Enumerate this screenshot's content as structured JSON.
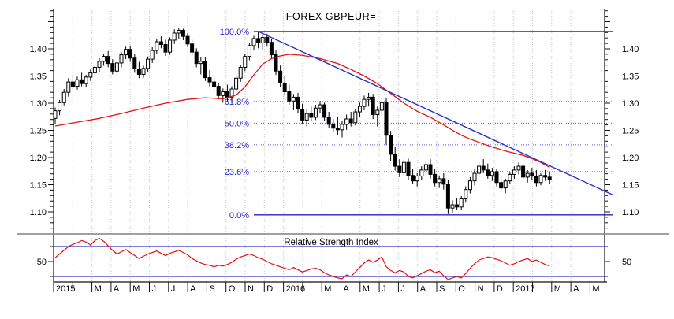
{
  "title": "FOREX GBPEUR=",
  "panels": {
    "main": {
      "name": "price-panel"
    },
    "rsi": {
      "label": "Relative Strength Index",
      "y_tick_label": "50",
      "overbought": 70,
      "oversold": 30
    }
  },
  "y_axis": {
    "tick_labels": [
      "1.40",
      "1.35",
      "1.30",
      "1.25",
      "1.20",
      "1.15",
      "1.10"
    ],
    "minor_step": 0.01,
    "major_step": 0.05,
    "minor_range": [
      1.07,
      1.47
    ]
  },
  "x_axis": {
    "month_labels": [
      "2015",
      "",
      "M",
      "A",
      "M",
      "J",
      "J",
      "A",
      "S",
      "O",
      "N",
      "D",
      "2016",
      "",
      "M",
      "A",
      "M",
      "J",
      "J",
      "A",
      "S",
      "O",
      "N",
      "D",
      "2017",
      "",
      "M",
      "A",
      "M"
    ]
  },
  "fibonacci": {
    "high": 1.432,
    "low": 1.0945,
    "levels": [
      {
        "label": "100.0%",
        "pct": 100.0,
        "price": 1.432,
        "solid": true
      },
      {
        "label": "61.8%",
        "pct": 61.8,
        "price": 1.3031,
        "solid": false
      },
      {
        "label": "50.0%",
        "pct": 50.0,
        "price": 1.2633,
        "solid": false
      },
      {
        "label": "38.2%",
        "pct": 38.2,
        "price": 1.2234,
        "solid": false
      },
      {
        "label": "23.6%",
        "pct": 23.6,
        "price": 1.1741,
        "solid": false
      },
      {
        "label": "0.0%",
        "pct": 0.0,
        "price": 1.0945,
        "solid": true
      }
    ]
  },
  "trendline": {
    "from": {
      "week": 46,
      "price": 1.432
    },
    "to": {
      "week": 126.4,
      "price": 1.131
    }
  },
  "colors": {
    "background": "#ffffff",
    "candle_up": "#ffffff",
    "candle_down": "#000000",
    "candle_stroke": "#000000",
    "ma": "#e41212",
    "rsi_line": "#e41212",
    "rsi_threshold": "#3333cc",
    "fib_solid": "#2222cc",
    "fib_dotted": "#5555dd",
    "trend": "#2233cc",
    "grid": "#c5c5c5",
    "axis": "#111111",
    "separator": "#808080",
    "label_blue": "#2222dd",
    "text": "#000000"
  },
  "chart_data": [
    {
      "type": "candlestick",
      "name": "GBPEUR= weekly OHLC",
      "x_unit": "week-index (Jan 2015 - Mar 2017)",
      "candles": [
        [
          1.272,
          1.292,
          1.262,
          1.286
        ],
        [
          1.286,
          1.306,
          1.278,
          1.301
        ],
        [
          1.301,
          1.326,
          1.296,
          1.32
        ],
        [
          1.32,
          1.346,
          1.312,
          1.339
        ],
        [
          1.339,
          1.352,
          1.326,
          1.331
        ],
        [
          1.331,
          1.349,
          1.325,
          1.343
        ],
        [
          1.343,
          1.356,
          1.331,
          1.336
        ],
        [
          1.336,
          1.352,
          1.329,
          1.348
        ],
        [
          1.348,
          1.362,
          1.341,
          1.356
        ],
        [
          1.356,
          1.371,
          1.348,
          1.366
        ],
        [
          1.366,
          1.383,
          1.358,
          1.377
        ],
        [
          1.377,
          1.391,
          1.369,
          1.386
        ],
        [
          1.386,
          1.396,
          1.366,
          1.373
        ],
        [
          1.373,
          1.381,
          1.353,
          1.359
        ],
        [
          1.359,
          1.379,
          1.351,
          1.374
        ],
        [
          1.374,
          1.394,
          1.366,
          1.389
        ],
        [
          1.389,
          1.404,
          1.381,
          1.399
        ],
        [
          1.399,
          1.406,
          1.376,
          1.383
        ],
        [
          1.383,
          1.391,
          1.356,
          1.363
        ],
        [
          1.363,
          1.376,
          1.346,
          1.353
        ],
        [
          1.353,
          1.369,
          1.347,
          1.364
        ],
        [
          1.364,
          1.386,
          1.358,
          1.381
        ],
        [
          1.381,
          1.403,
          1.374,
          1.397
        ],
        [
          1.397,
          1.419,
          1.391,
          1.413
        ],
        [
          1.413,
          1.423,
          1.401,
          1.408
        ],
        [
          1.408,
          1.417,
          1.387,
          1.394
        ],
        [
          1.394,
          1.421,
          1.389,
          1.416
        ],
        [
          1.416,
          1.436,
          1.409,
          1.429
        ],
        [
          1.429,
          1.439,
          1.418,
          1.434
        ],
        [
          1.434,
          1.437,
          1.416,
          1.423
        ],
        [
          1.423,
          1.429,
          1.403,
          1.409
        ],
        [
          1.409,
          1.417,
          1.387,
          1.394
        ],
        [
          1.394,
          1.401,
          1.366,
          1.373
        ],
        [
          1.373,
          1.384,
          1.353,
          1.377
        ],
        [
          1.377,
          1.384,
          1.341,
          1.347
        ],
        [
          1.347,
          1.361,
          1.331,
          1.339
        ],
        [
          1.339,
          1.351,
          1.324,
          1.331
        ],
        [
          1.331,
          1.337,
          1.307,
          1.314
        ],
        [
          1.314,
          1.327,
          1.301,
          1.321
        ],
        [
          1.321,
          1.334,
          1.304,
          1.311
        ],
        [
          1.311,
          1.331,
          1.301,
          1.326
        ],
        [
          1.326,
          1.351,
          1.319,
          1.346
        ],
        [
          1.346,
          1.371,
          1.339,
          1.366
        ],
        [
          1.366,
          1.391,
          1.359,
          1.386
        ],
        [
          1.386,
          1.411,
          1.379,
          1.406
        ],
        [
          1.406,
          1.424,
          1.397,
          1.419
        ],
        [
          1.419,
          1.432,
          1.401,
          1.411
        ],
        [
          1.411,
          1.427,
          1.399,
          1.421
        ],
        [
          1.421,
          1.428,
          1.404,
          1.412
        ],
        [
          1.412,
          1.419,
          1.381,
          1.389
        ],
        [
          1.389,
          1.397,
          1.352,
          1.359
        ],
        [
          1.359,
          1.369,
          1.329,
          1.337
        ],
        [
          1.337,
          1.349,
          1.314,
          1.321
        ],
        [
          1.321,
          1.334,
          1.297,
          1.304
        ],
        [
          1.304,
          1.317,
          1.287,
          1.311
        ],
        [
          1.311,
          1.319,
          1.281,
          1.289
        ],
        [
          1.289,
          1.299,
          1.261,
          1.269
        ],
        [
          1.269,
          1.289,
          1.257,
          1.281
        ],
        [
          1.281,
          1.294,
          1.267,
          1.274
        ],
        [
          1.274,
          1.297,
          1.269,
          1.291
        ],
        [
          1.291,
          1.304,
          1.281,
          1.297
        ],
        [
          1.297,
          1.301,
          1.267,
          1.274
        ],
        [
          1.274,
          1.284,
          1.254,
          1.261
        ],
        [
          1.261,
          1.271,
          1.247,
          1.254
        ],
        [
          1.254,
          1.274,
          1.241,
          1.251
        ],
        [
          1.251,
          1.267,
          1.237,
          1.261
        ],
        [
          1.261,
          1.279,
          1.251,
          1.271
        ],
        [
          1.271,
          1.284,
          1.257,
          1.264
        ],
        [
          1.264,
          1.289,
          1.259,
          1.284
        ],
        [
          1.284,
          1.301,
          1.274,
          1.294
        ],
        [
          1.294,
          1.314,
          1.287,
          1.307
        ],
        [
          1.307,
          1.319,
          1.294,
          1.311
        ],
        [
          1.311,
          1.317,
          1.271,
          1.279
        ],
        [
          1.279,
          1.294,
          1.257,
          1.287
        ],
        [
          1.287,
          1.309,
          1.277,
          1.301
        ],
        [
          1.301,
          1.309,
          1.224,
          1.241
        ],
        [
          1.241,
          1.249,
          1.194,
          1.206
        ],
        [
          1.206,
          1.219,
          1.176,
          1.184
        ],
        [
          1.184,
          1.197,
          1.164,
          1.172
        ],
        [
          1.172,
          1.197,
          1.166,
          1.191
        ],
        [
          1.191,
          1.198,
          1.159,
          1.167
        ],
        [
          1.167,
          1.179,
          1.151,
          1.157
        ],
        [
          1.157,
          1.171,
          1.147,
          1.166
        ],
        [
          1.166,
          1.184,
          1.159,
          1.177
        ],
        [
          1.177,
          1.194,
          1.169,
          1.187
        ],
        [
          1.187,
          1.197,
          1.161,
          1.169
        ],
        [
          1.169,
          1.179,
          1.147,
          1.154
        ],
        [
          1.154,
          1.167,
          1.144,
          1.161
        ],
        [
          1.161,
          1.171,
          1.141,
          1.151
        ],
        [
          1.151,
          1.159,
          1.096,
          1.107
        ],
        [
          1.107,
          1.121,
          1.099,
          1.113
        ],
        [
          1.113,
          1.126,
          1.103,
          1.109
        ],
        [
          1.109,
          1.129,
          1.104,
          1.124
        ],
        [
          1.124,
          1.147,
          1.117,
          1.141
        ],
        [
          1.141,
          1.164,
          1.134,
          1.157
        ],
        [
          1.157,
          1.179,
          1.149,
          1.171
        ],
        [
          1.171,
          1.191,
          1.164,
          1.184
        ],
        [
          1.184,
          1.197,
          1.171,
          1.177
        ],
        [
          1.177,
          1.189,
          1.161,
          1.167
        ],
        [
          1.167,
          1.181,
          1.157,
          1.174
        ],
        [
          1.174,
          1.179,
          1.147,
          1.154
        ],
        [
          1.154,
          1.167,
          1.137,
          1.144
        ],
        [
          1.144,
          1.161,
          1.134,
          1.157
        ],
        [
          1.157,
          1.174,
          1.151,
          1.169
        ],
        [
          1.169,
          1.184,
          1.161,
          1.177
        ],
        [
          1.177,
          1.191,
          1.169,
          1.184
        ],
        [
          1.184,
          1.189,
          1.157,
          1.164
        ],
        [
          1.164,
          1.177,
          1.154,
          1.171
        ],
        [
          1.171,
          1.181,
          1.159,
          1.166
        ],
        [
          1.166,
          1.177,
          1.147,
          1.154
        ],
        [
          1.154,
          1.171,
          1.149,
          1.167
        ],
        [
          1.167,
          1.177,
          1.157,
          1.164
        ],
        [
          1.164,
          1.173,
          1.152,
          1.159
        ]
      ]
    },
    {
      "type": "line",
      "name": "moving-average",
      "points": [
        [
          0,
          1.258
        ],
        [
          5,
          1.265
        ],
        [
          10,
          1.272
        ],
        [
          15,
          1.281
        ],
        [
          20,
          1.291
        ],
        [
          25,
          1.3
        ],
        [
          30,
          1.307
        ],
        [
          34,
          1.31
        ],
        [
          38,
          1.308
        ],
        [
          41,
          1.315
        ],
        [
          43,
          1.33
        ],
        [
          45,
          1.352
        ],
        [
          47,
          1.372
        ],
        [
          49,
          1.382
        ],
        [
          51,
          1.387
        ],
        [
          53,
          1.39
        ],
        [
          56,
          1.388
        ],
        [
          60,
          1.382
        ],
        [
          64,
          1.373
        ],
        [
          67,
          1.362
        ],
        [
          70,
          1.35
        ],
        [
          73,
          1.336
        ],
        [
          76,
          1.318
        ],
        [
          79,
          1.3
        ],
        [
          82,
          1.285
        ],
        [
          85,
          1.274
        ],
        [
          88,
          1.26
        ],
        [
          90,
          1.25
        ],
        [
          92,
          1.241
        ],
        [
          94,
          1.234
        ],
        [
          96,
          1.228
        ],
        [
          98,
          1.222
        ],
        [
          100,
          1.217
        ],
        [
          102,
          1.212
        ],
        [
          104,
          1.208
        ],
        [
          106,
          1.204
        ],
        [
          108,
          1.198
        ],
        [
          110,
          1.191
        ],
        [
          112,
          1.182
        ]
      ]
    },
    {
      "type": "line",
      "name": "relative-strength-index",
      "y_range": [
        0,
        100
      ],
      "values": [
        55,
        60,
        65,
        70,
        73,
        75,
        78,
        76,
        72,
        78,
        81,
        77,
        71,
        65,
        60,
        63,
        66,
        62,
        58,
        54,
        57,
        60,
        62,
        64,
        61,
        58,
        61,
        63,
        65,
        62,
        59,
        54,
        51,
        48,
        46,
        45,
        43,
        45,
        44,
        46,
        49,
        53,
        56,
        58,
        60,
        58,
        55,
        53,
        50,
        47,
        45,
        43,
        41,
        39,
        42,
        39,
        36,
        38,
        40,
        41,
        39,
        35,
        32,
        30,
        28,
        27,
        32,
        30,
        36,
        42,
        48,
        52,
        49,
        52,
        56,
        43,
        38,
        35,
        38,
        36,
        30,
        28,
        31,
        34,
        37,
        39,
        35,
        37,
        31,
        26,
        28,
        30,
        28,
        34,
        41,
        47,
        52,
        54,
        56,
        55,
        53,
        51,
        48,
        45,
        47,
        50,
        52,
        54,
        50,
        52,
        49,
        46,
        44
      ]
    }
  ]
}
